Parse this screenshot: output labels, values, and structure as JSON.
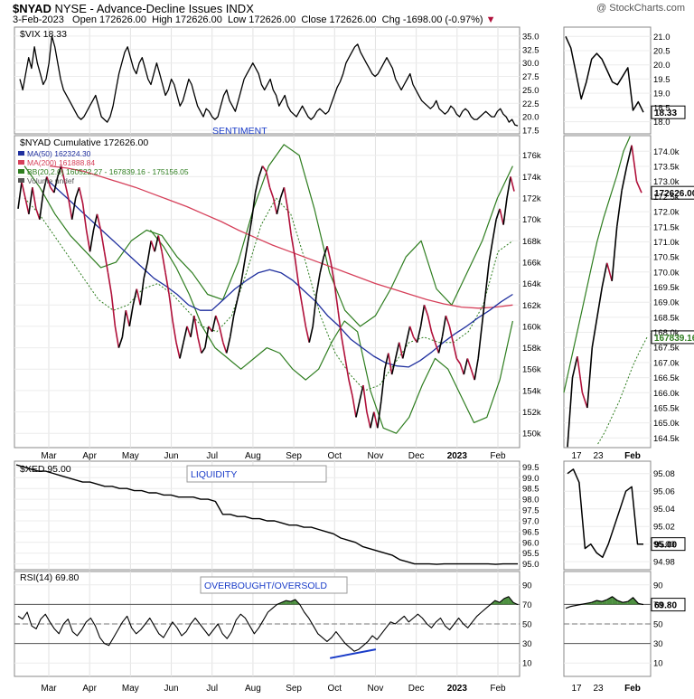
{
  "header": {
    "symbol": "$NYAD",
    "description": "NYSE - Advance-Decline Issues INDX",
    "credit": "@ StockCharts.com",
    "date": "3-Feb-2023",
    "open_label": "Open",
    "open": "172626.00",
    "high_label": "High",
    "high": "172626.00",
    "low_label": "Low",
    "low": "172626.00",
    "close_label": "Close",
    "close": "172626.00",
    "chg_label": "Chg",
    "chg": "-1698.00 (-0.97%)"
  },
  "colors": {
    "price_up": "#000000",
    "price_down": "#b0103a",
    "ma50": "#1f2f9e",
    "ma200": "#d6405a",
    "bollinger": "#2e7d1f",
    "badge": "#000000",
    "rsi_fill": "#2e7d1f",
    "divergence": "#1a3cc8"
  },
  "chart_data": [
    {
      "id": "vix",
      "type": "line",
      "legend": "$VIX 18.33",
      "annotation": "SENTIMENT",
      "last_value_badge": "18.33",
      "y_ticks": [
        "35.0",
        "32.5",
        "30.0",
        "27.5",
        "25.0",
        "22.5",
        "20.0",
        "17.5"
      ],
      "ylim": [
        17.5,
        36
      ],
      "values": [
        27,
        25,
        28,
        31,
        29,
        33,
        30,
        28,
        26,
        27,
        30,
        35,
        33,
        30,
        27,
        25,
        24,
        23,
        22,
        21,
        20,
        19.5,
        20,
        21,
        22,
        23,
        24,
        22,
        20,
        19.5,
        19,
        20,
        22,
        25,
        28,
        30,
        32,
        33,
        31,
        29,
        28,
        30,
        31,
        29,
        27,
        26,
        28,
        30,
        28,
        26,
        24,
        25,
        27,
        26,
        24,
        22,
        23,
        25,
        27,
        26,
        24,
        22,
        21,
        20,
        21.5,
        21,
        20,
        19.5,
        20,
        22,
        24,
        25,
        23,
        22,
        21,
        23,
        25,
        27,
        28,
        29,
        30,
        29,
        28,
        26,
        25,
        26,
        27,
        25,
        24,
        22,
        23,
        24,
        22,
        21,
        20.5,
        20,
        21,
        22,
        21,
        20,
        19.5,
        20,
        21,
        21.5,
        21,
        20.5,
        21,
        22.5,
        24,
        25.5,
        26.5,
        28,
        30,
        31,
        32,
        33,
        33.5,
        32,
        31,
        30,
        29,
        28,
        27.5,
        28,
        29,
        30,
        31,
        30,
        29,
        27,
        26,
        25,
        26,
        27,
        28,
        26,
        25,
        24,
        23,
        22.5,
        22,
        21.5,
        22,
        23,
        21.5,
        21,
        20.5,
        21,
        22,
        21.5,
        20.5,
        20,
        21,
        21.5,
        21,
        20,
        19.5,
        19.5,
        20,
        20.5,
        21,
        20.5,
        20,
        20,
        21,
        21.5,
        20.5,
        20,
        19,
        19.5,
        18.5,
        18.33
      ],
      "inset_y_ticks": [
        "21.0",
        "20.5",
        "20.0",
        "19.5",
        "19.0",
        "18.5",
        "18.0"
      ],
      "inset_ylim": [
        17.7,
        21.2
      ],
      "inset_values": [
        21.0,
        20.6,
        19.7,
        18.8,
        19.4,
        20.2,
        20.4,
        20.2,
        19.8,
        19.4,
        19.3,
        19.6,
        19.9,
        18.4,
        18.7,
        18.33
      ]
    },
    {
      "id": "nyad",
      "type": "line",
      "legend": "$NYAD Cumulative 172626.00",
      "series": [
        {
          "name": "MA(50) 162324.30"
        },
        {
          "name": "MA(200) 161888.84"
        },
        {
          "name": "BB(20,2.0) 160522.27 - 167839.16 - 175156.05"
        },
        {
          "name": "Volume undef"
        }
      ],
      "last_value_badge": "172626.00",
      "inset_mid_badge": "167839.16",
      "y_ticks": [
        "176k",
        "174k",
        "172k",
        "170k",
        "168k",
        "166k",
        "164k",
        "162k",
        "160k",
        "158k",
        "156k",
        "154k",
        "152k",
        "150k"
      ],
      "ylim": [
        149000,
        177500
      ],
      "values": [
        171000,
        173500,
        172000,
        170500,
        173000,
        171000,
        170000,
        172500,
        174000,
        173000,
        172500,
        174000,
        175000,
        173500,
        172000,
        170000,
        172000,
        173000,
        171500,
        169000,
        167000,
        169000,
        170500,
        169000,
        167000,
        165000,
        163000,
        160000,
        158000,
        159000,
        161500,
        160000,
        162000,
        163500,
        162000,
        164500,
        166000,
        168000,
        167000,
        168500,
        167000,
        165000,
        163000,
        160500,
        158500,
        157000,
        158500,
        160000,
        159000,
        161000,
        159000,
        157500,
        158000,
        160000,
        159500,
        161000,
        160000,
        158500,
        157500,
        159000,
        161000,
        162500,
        164000,
        166000,
        168000,
        170000,
        172500,
        174000,
        175000,
        174500,
        173000,
        172000,
        170500,
        172000,
        173000,
        171000,
        168500,
        166500,
        164000,
        162000,
        160000,
        158500,
        160000,
        163000,
        165000,
        166500,
        167500,
        166000,
        164000,
        161500,
        159000,
        157000,
        155000,
        153500,
        151500,
        153000,
        154500,
        152000,
        150500,
        152000,
        150500,
        153000,
        156000,
        157500,
        155500,
        157000,
        158500,
        157000,
        158500,
        160000,
        159000,
        158500,
        160000,
        162000,
        161000,
        159500,
        158500,
        157500,
        159000,
        161000,
        160000,
        158500,
        157000,
        156500,
        155500,
        157000,
        156000,
        155000,
        157000,
        160000,
        163000,
        166000,
        168000,
        170000,
        171000,
        169500,
        172000,
        174000,
        172626
      ],
      "ma50": [
        173500,
        172500,
        171500,
        170500,
        169500,
        168500,
        167500,
        166500,
        165500,
        164500,
        163800,
        163000,
        162000,
        161500,
        161500,
        162500,
        163500,
        164300,
        165000,
        165300,
        165000,
        164300,
        163300,
        162300,
        161000,
        160000,
        158800,
        158000,
        157200,
        156600,
        156300,
        156200,
        156800,
        157600,
        158500,
        159300,
        160000,
        160800,
        161500,
        162300,
        163000
      ],
      "ma200": [
        175000,
        174800,
        174500,
        174000,
        173500,
        173000,
        172400,
        171800,
        171200,
        170500,
        169800,
        169000,
        168300,
        167600,
        167000,
        166400,
        165800,
        165200,
        164600,
        164000,
        163500,
        163000,
        162500,
        162100,
        161800,
        161700,
        161800,
        162000
      ],
      "bb_upper": [
        175000,
        173000,
        170500,
        168500,
        167000,
        165500,
        166000,
        168000,
        169000,
        168500,
        166500,
        165000,
        163000,
        162500,
        166000,
        171000,
        175000,
        177000,
        176000,
        171000,
        165000,
        161500,
        160000,
        161000,
        163500,
        166500,
        168000,
        163500,
        162000,
        165000,
        168000,
        172000,
        175000
      ],
      "bb_mid": [
        172000,
        170500,
        168500,
        166500,
        164500,
        162500,
        161500,
        162000,
        163500,
        164000,
        163000,
        161500,
        160000,
        159500,
        161000,
        165000,
        169500,
        172000,
        170500,
        166000,
        161000,
        157500,
        155500,
        154000,
        154500,
        156500,
        158500,
        159000,
        158500,
        158500,
        159500,
        162000,
        167000,
        168000
      ],
      "bb_lower": [
        169000,
        167500,
        165500,
        163000,
        160000,
        158000,
        157000,
        156000,
        157000,
        158000,
        157500,
        156000,
        155000,
        156000,
        158500,
        160500,
        159500,
        154000,
        150500,
        150000,
        151500,
        154500,
        157000,
        156000,
        153500,
        151000,
        151500,
        155000,
        160500
      ],
      "inset_y_ticks": [
        "174.0k",
        "173.5k",
        "173.0k",
        "172.5k",
        "172.0k",
        "171.5k",
        "171.0k",
        "170.5k",
        "170.0k",
        "169.5k",
        "169.0k",
        "168.5k",
        "168.0k",
        "167.5k",
        "167.0k",
        "166.5k",
        "166.0k",
        "165.5k",
        "165.0k",
        "164.5k"
      ],
      "inset_ylim": [
        164300,
        174400
      ],
      "inset_values": [
        164200,
        166500,
        167200,
        166000,
        165500,
        167500,
        168500,
        169500,
        170300,
        169700,
        171500,
        172700,
        173500,
        174200,
        173000,
        172626
      ],
      "inset_bb_upper": [
        166000,
        167000,
        168000,
        169000,
        170000,
        171000,
        171800,
        172500,
        173200,
        174000,
        174500
      ],
      "inset_bb_mid": [
        164300,
        164700,
        165200,
        165700,
        166300,
        166900,
        167400,
        167839
      ]
    },
    {
      "id": "xed",
      "type": "line",
      "legend": "$XED 95.00",
      "annotation": "LIQUIDITY",
      "last_value_badge": "95.00",
      "y_ticks": [
        "99.5",
        "99.0",
        "98.5",
        "98.0",
        "97.5",
        "97.0",
        "96.5",
        "96.0",
        "95.5",
        "95.0"
      ],
      "ylim": [
        94.9,
        99.6
      ],
      "values": [
        99.6,
        99.5,
        99.4,
        99.3,
        99.3,
        99.2,
        99.1,
        99.0,
        98.9,
        98.8,
        98.8,
        98.7,
        98.6,
        98.6,
        98.5,
        98.5,
        98.4,
        98.4,
        98.3,
        98.3,
        98.2,
        98.2,
        98.1,
        98.1,
        98.1,
        98.0,
        98.0,
        97.9,
        97.3,
        97.3,
        97.2,
        97.2,
        97.1,
        97.1,
        97.0,
        97.0,
        96.9,
        96.8,
        96.8,
        96.7,
        96.7,
        96.6,
        96.5,
        96.4,
        96.2,
        96.1,
        96.0,
        95.8,
        95.7,
        95.6,
        95.5,
        95.4,
        95.2,
        95.1,
        95.0,
        95.0,
        95.0,
        94.98,
        95.0,
        95.0,
        95.0,
        95.0,
        95.0,
        95.0,
        95.0,
        94.98,
        95.0,
        95.0,
        95.0
      ],
      "inset_y_ticks": [
        "95.08",
        "95.06",
        "95.04",
        "95.02",
        "95.00",
        "94.98"
      ],
      "inset_ylim": [
        94.975,
        95.09
      ],
      "inset_values": [
        95.08,
        95.085,
        95.07,
        94.995,
        95.0,
        94.99,
        94.985,
        95.0,
        95.02,
        95.04,
        95.06,
        95.065,
        95.0,
        95.0
      ]
    },
    {
      "id": "rsi",
      "type": "line",
      "legend": "RSI(14) 69.80",
      "annotation": "OVERBOUGHT/OVERSOLD",
      "last_value_badge": "69.80",
      "y_ticks": [
        "90",
        "70",
        "50",
        "30",
        "10"
      ],
      "levels": [
        70,
        50,
        30
      ],
      "ylim": [
        0,
        100
      ],
      "values": [
        58,
        55,
        62,
        48,
        45,
        55,
        60,
        52,
        45,
        40,
        50,
        55,
        42,
        38,
        44,
        52,
        56,
        48,
        36,
        30,
        28,
        36,
        44,
        52,
        58,
        46,
        40,
        44,
        50,
        56,
        48,
        40,
        36,
        44,
        52,
        46,
        38,
        42,
        50,
        56,
        50,
        44,
        38,
        44,
        50,
        40,
        35,
        42,
        54,
        60,
        56,
        48,
        40,
        46,
        54,
        62,
        66,
        70,
        72,
        74,
        73,
        75,
        70,
        62,
        56,
        48,
        40,
        36,
        32,
        36,
        42,
        36,
        30,
        26,
        22,
        24,
        28,
        32,
        38,
        34,
        40,
        46,
        52,
        50,
        54,
        58,
        52,
        56,
        60,
        56,
        50,
        46,
        52,
        56,
        48,
        44,
        50,
        56,
        50,
        46,
        52,
        58,
        62,
        66,
        70,
        74,
        72,
        76,
        78,
        72,
        69.8
      ],
      "divergence_segment": [
        [
          0.627,
          15
        ],
        [
          0.718,
          24
        ]
      ],
      "inset_y_ticks": [
        "90",
        "70",
        "50",
        "30",
        "10"
      ],
      "inset_values": [
        66,
        68,
        69,
        70,
        71,
        72,
        74,
        73,
        75,
        78,
        74,
        72,
        73,
        77,
        71,
        69.8
      ]
    }
  ],
  "x_axis": {
    "labels": [
      "Mar",
      "Apr",
      "May",
      "Jun",
      "Jul",
      "Aug",
      "Sep",
      "Oct",
      "Nov",
      "Dec",
      "2023",
      "Feb"
    ],
    "inset_labels": [
      "17",
      "23",
      "Feb"
    ]
  }
}
